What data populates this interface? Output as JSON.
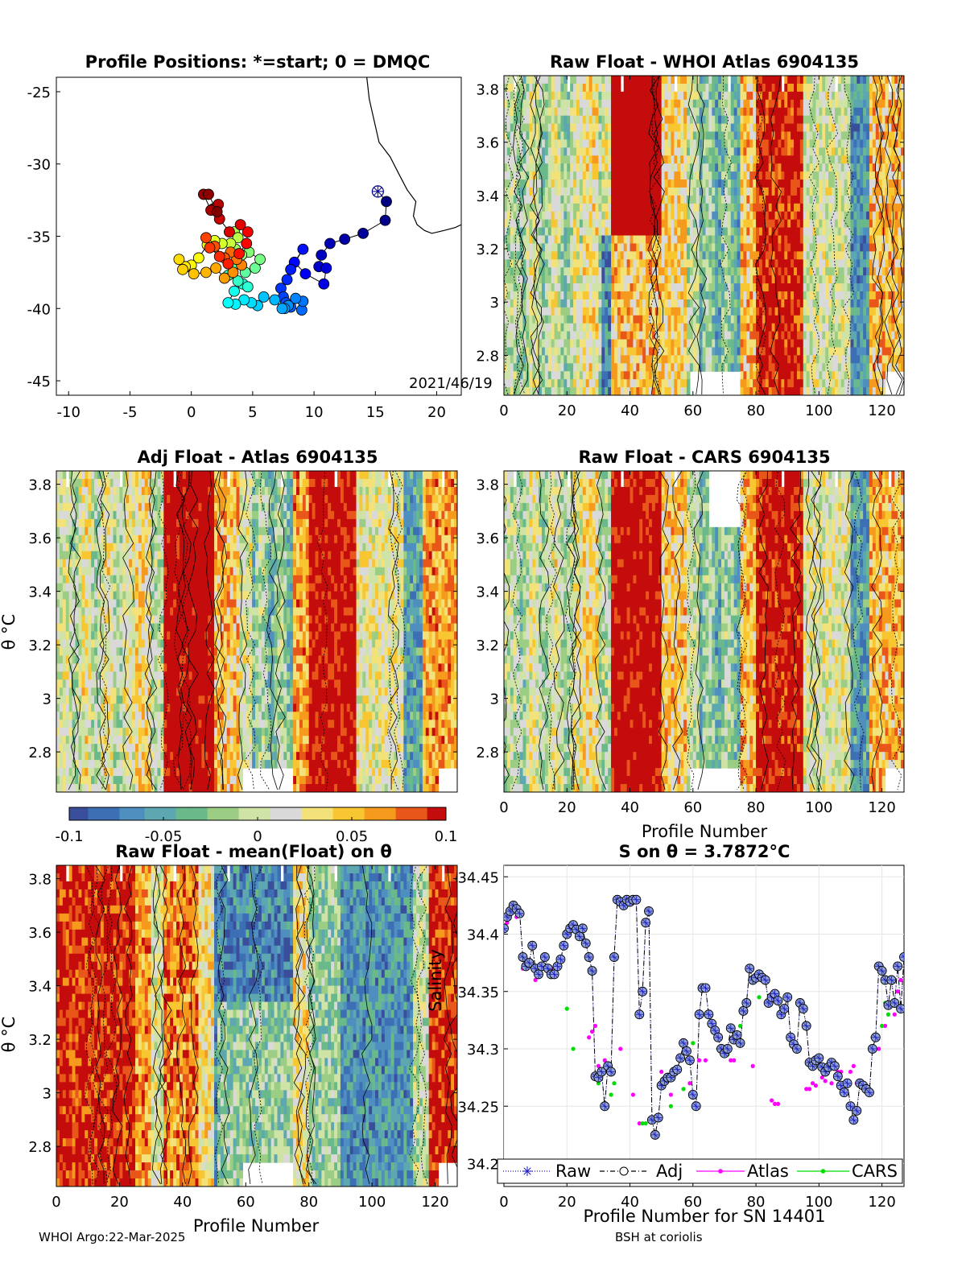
{
  "colors": {
    "scale": [
      "#3a4f9c",
      "#3d6fb5",
      "#4f8fc0",
      "#5da8b0",
      "#69b98a",
      "#9bce84",
      "#cfe3a6",
      "#d9d9d9",
      "#f3e27a",
      "#f7c631",
      "#f59a1d",
      "#e8561a",
      "#c40c0c"
    ],
    "axis": "#000000",
    "grid": "#e6e6e6",
    "raw": "#1f1fbf",
    "adj": "#000000",
    "atlas": "#ff00ff",
    "cars": "#00dd00"
  },
  "footer": {
    "left": "WHOI Argo:22-Mar-2025",
    "right": "BSH at coriolis"
  },
  "panels": {
    "map": {
      "title": "Profile Positions: *=start; 0 = DMQC",
      "date_label": "2021/46/19",
      "xticks": [
        "-10",
        "-5",
        "0",
        "5",
        "10",
        "15",
        "20"
      ],
      "yticks": [
        "-25",
        "-30",
        "-35",
        "-40",
        "-45"
      ]
    },
    "raw_whoi": {
      "title": "Raw Float - WHOI Atlas  6904135",
      "xticks": [
        "0",
        "20",
        "40",
        "60",
        "80",
        "100",
        "120"
      ],
      "yticks": [
        "3.8",
        "3.6",
        "3.4",
        "3.2",
        "3",
        "2.8"
      ]
    },
    "adj_atlas": {
      "title": "Adj Float - Atlas  6904135",
      "ylabel": "θ °C",
      "xticks": [
        "0",
        "20",
        "40",
        "60",
        "80",
        "100",
        "120"
      ],
      "yticks": [
        "3.8",
        "3.6",
        "3.4",
        "3.2",
        "3",
        "2.8"
      ]
    },
    "raw_cars": {
      "title": "Raw Float - CARS  6904135",
      "xlabel": "Profile Number",
      "xticks": [
        "0",
        "20",
        "40",
        "60",
        "80",
        "100",
        "120"
      ],
      "yticks": [
        "3.8",
        "3.6",
        "3.4",
        "3.2",
        "3",
        "2.8"
      ]
    },
    "colorbar": {
      "ticks": [
        "-0.1",
        "-0.05",
        "0",
        "0.05",
        "0.1"
      ]
    },
    "raw_mean": {
      "title": "Raw Float - mean(Float) on θ",
      "ylabel": "θ °C",
      "xlabel": "Profile Number",
      "xticks": [
        "0",
        "20",
        "40",
        "60",
        "80",
        "100",
        "120"
      ],
      "yticks": [
        "3.8",
        "3.6",
        "3.4",
        "3.2",
        "3",
        "2.8"
      ]
    },
    "salinity": {
      "title": "S on θ = 3.7872°C",
      "ylabel": "Salinity",
      "xlabel": "Profile Number for SN 14401",
      "xticks": [
        "0",
        "20",
        "40",
        "60",
        "80",
        "100",
        "120"
      ],
      "yticks": [
        "34.45",
        "34.4",
        "34.35",
        "34.3",
        "34.25",
        "34.2"
      ],
      "legend": [
        "Raw",
        "Adj",
        "Atlas",
        "CARS"
      ]
    }
  },
  "chart_data": [
    {
      "type": "scatter",
      "title": "Profile Positions: *=start; 0 = DMQC",
      "xlim": [
        -11,
        22
      ],
      "ylim": [
        -46,
        -24
      ],
      "start": [
        15.2,
        -31.9
      ],
      "x": [
        15.9,
        15.8,
        14,
        12.5,
        11.3,
        10.6,
        10.4,
        11,
        10.8,
        9.3,
        8.4,
        9.1,
        8.1,
        7.8,
        7.3,
        7.5,
        7.7,
        8.1,
        9,
        9.1,
        8.5,
        7.9,
        7.6,
        7.4,
        6.8,
        5.9,
        5.4,
        4.9,
        4.3,
        3.6,
        3,
        3.5,
        4.2,
        4.6,
        3.8,
        3,
        3.4,
        4.4,
        5.2,
        5.6,
        4.7,
        4.1,
        3.6,
        3.5,
        3.8,
        3.2,
        2.5,
        1.9,
        1.3,
        0.6,
        0,
        -0.5,
        -1,
        -0.7,
        0.2,
        1.2,
        2,
        2.7,
        3.4,
        4.1,
        3.7,
        3.2,
        2.7,
        1.9,
        1.2,
        1.5,
        2.3,
        3,
        3.9,
        4.5,
        4.6,
        4,
        3.1,
        2.3,
        1.8,
        2.2,
        1.6,
        1,
        1.4,
        2.1
      ],
      "y": [
        -32.6,
        -33.9,
        -34.8,
        -35.2,
        -35.5,
        -36.3,
        -37.1,
        -37.2,
        -38.3,
        -37.6,
        -36.8,
        -35.9,
        -37.3,
        -38,
        -38.6,
        -39.2,
        -39.6,
        -39.9,
        -40.1,
        -39.5,
        -39.3,
        -39.8,
        -40,
        -40,
        -39.4,
        -39.2,
        -39.8,
        -39.6,
        -39.4,
        -39.7,
        -39.6,
        -38.8,
        -38.3,
        -38.5,
        -38.1,
        -37.7,
        -37,
        -37.5,
        -37.2,
        -36.6,
        -36.1,
        -36.3,
        -35.9,
        -34.7,
        -35.1,
        -35.5,
        -35.5,
        -35.3,
        -35.6,
        -36.5,
        -37,
        -37.1,
        -36.6,
        -37.3,
        -37.6,
        -37.5,
        -37.2,
        -37.9,
        -37.5,
        -37,
        -36.6,
        -36.1,
        -36.5,
        -35.7,
        -35.1,
        -35.8,
        -36.4,
        -36.9,
        -36.2,
        -35.5,
        -34.7,
        -34.2,
        -34.7,
        -33.8,
        -33.1,
        -32.8,
        -33.2,
        -32.1,
        -32.1,
        -33.3
      ]
    },
    {
      "type": "heatmap",
      "title": "Raw Float - WHOI Atlas  6904135",
      "xlim": [
        0,
        127
      ],
      "ylim": [
        2.65,
        3.85
      ],
      "clim": [
        -0.1,
        0.1
      ]
    },
    {
      "type": "heatmap",
      "title": "Adj Float - Atlas  6904135",
      "ylabel": "θ °C",
      "xlim": [
        0,
        127
      ],
      "ylim": [
        2.65,
        3.85
      ],
      "clim": [
        -0.1,
        0.1
      ]
    },
    {
      "type": "heatmap",
      "title": "Raw Float - CARS  6904135",
      "xlabel": "Profile Number",
      "xlim": [
        0,
        127
      ],
      "ylim": [
        2.65,
        3.85
      ],
      "clim": [
        -0.1,
        0.1
      ]
    },
    {
      "type": "heatmap",
      "title": "Raw Float - mean(Float) on θ",
      "ylabel": "θ °C",
      "xlabel": "Profile Number",
      "xlim": [
        0,
        127
      ],
      "ylim": [
        2.65,
        3.85
      ],
      "clim": [
        -0.1,
        0.1
      ]
    },
    {
      "type": "line",
      "title": "S on θ = 3.7872°C",
      "xlabel": "Profile Number for SN 14401",
      "ylabel": "Salinity",
      "xlim": [
        0,
        127
      ],
      "ylim": [
        34.18,
        34.46
      ],
      "series": [
        {
          "name": "Raw",
          "x": [
            0,
            1,
            2,
            3,
            4,
            5,
            6,
            7,
            8,
            9,
            10,
            11,
            12,
            13,
            14,
            15,
            16,
            17,
            18,
            19,
            20,
            21,
            22,
            23,
            24,
            25,
            26,
            27,
            28,
            29,
            30,
            31,
            32,
            33,
            34,
            35,
            36,
            37,
            38,
            39,
            40,
            41,
            42,
            43,
            44,
            45,
            46,
            47,
            48,
            49,
            50,
            51,
            52,
            53,
            54,
            55,
            56,
            57,
            58,
            59,
            60,
            61,
            62,
            63,
            64,
            65,
            66,
            67,
            68,
            69,
            70,
            71,
            72,
            73,
            74,
            75,
            76,
            77,
            78,
            79,
            80,
            81,
            82,
            83,
            84,
            85,
            86,
            87,
            88,
            89,
            90,
            91,
            92,
            93,
            94,
            95,
            96,
            97,
            98,
            99,
            100,
            101,
            102,
            103,
            104,
            105,
            106,
            107,
            108,
            109,
            110,
            111,
            112,
            113,
            114,
            115,
            116,
            117,
            118,
            119,
            120,
            121,
            122,
            123,
            124,
            125,
            126,
            127
          ],
          "y": [
            34.405,
            34.415,
            34.42,
            34.425,
            34.422,
            34.418,
            34.38,
            34.372,
            34.375,
            34.39,
            34.37,
            34.365,
            34.372,
            34.38,
            34.37,
            34.365,
            34.365,
            34.372,
            34.378,
            34.39,
            34.4,
            34.405,
            34.408,
            34.404,
            34.398,
            34.405,
            34.392,
            34.38,
            34.368,
            34.276,
            34.275,
            34.28,
            34.25,
            34.285,
            34.28,
            34.38,
            34.43,
            34.428,
            34.425,
            34.43,
            34.428,
            34.43,
            34.43,
            34.33,
            34.35,
            34.41,
            34.42,
            34.238,
            34.225,
            34.24,
            34.268,
            34.272,
            34.275,
            34.275,
            34.28,
            34.282,
            34.292,
            34.305,
            34.298,
            34.29,
            34.26,
            34.25,
            34.33,
            34.353,
            34.353,
            34.33,
            34.322,
            34.316,
            34.31,
            34.3,
            34.296,
            34.3,
            34.318,
            34.308,
            34.312,
            34.305,
            34.333,
            34.34,
            34.37,
            34.36,
            34.362,
            34.365,
            34.362,
            34.36,
            34.34,
            34.345,
            34.348,
            34.342,
            34.33,
            34.335,
            34.345,
            34.31,
            34.304,
            34.3,
            34.34,
            34.335,
            34.32,
            34.288,
            34.285,
            34.29,
            34.292,
            34.284,
            34.28,
            34.284,
            34.288,
            34.285,
            34.276,
            34.268,
            34.262,
            34.27,
            34.25,
            34.238,
            34.246,
            34.27,
            34.268,
            34.265,
            34.262,
            34.3,
            34.31,
            34.372,
            34.368,
            34.36,
            34.338,
            34.36,
            34.34,
            34.372,
            34.335,
            34.38
          ]
        },
        {
          "name": "Adj",
          "x": [
            0,
            1,
            2,
            3,
            4,
            5,
            6,
            7,
            8,
            9,
            10,
            11,
            12,
            13,
            14,
            15,
            16,
            17,
            18,
            19,
            20,
            21,
            22,
            23,
            24,
            25,
            26,
            27,
            28,
            29,
            30,
            31,
            32,
            33,
            34,
            35,
            36,
            37,
            38,
            39,
            40,
            41,
            42,
            43,
            44,
            45,
            46,
            47,
            48,
            49,
            50,
            51,
            52,
            53,
            54,
            55,
            56,
            57,
            58,
            59,
            60,
            61,
            62,
            63,
            64,
            65,
            66,
            67,
            68,
            69,
            70,
            71,
            72,
            73,
            74,
            75,
            76,
            77,
            78,
            79,
            80,
            81,
            82,
            83,
            84,
            85,
            86,
            87,
            88,
            89,
            90,
            91,
            92,
            93,
            94,
            95,
            96,
            97,
            98,
            99,
            100,
            101,
            102,
            103,
            104,
            105,
            106,
            107,
            108,
            109,
            110,
            111,
            112,
            113,
            114,
            115,
            116,
            117,
            118,
            119,
            120,
            121,
            122,
            123,
            124,
            125,
            126,
            127
          ],
          "y": [
            34.405,
            34.415,
            34.42,
            34.425,
            34.422,
            34.418,
            34.38,
            34.372,
            34.375,
            34.39,
            34.37,
            34.365,
            34.372,
            34.38,
            34.37,
            34.365,
            34.365,
            34.372,
            34.378,
            34.39,
            34.4,
            34.405,
            34.408,
            34.404,
            34.398,
            34.405,
            34.392,
            34.38,
            34.368,
            34.276,
            34.275,
            34.28,
            34.25,
            34.285,
            34.28,
            34.38,
            34.43,
            34.428,
            34.425,
            34.43,
            34.428,
            34.43,
            34.43,
            34.33,
            34.35,
            34.41,
            34.42,
            34.238,
            34.225,
            34.24,
            34.268,
            34.272,
            34.275,
            34.275,
            34.28,
            34.282,
            34.292,
            34.305,
            34.298,
            34.29,
            34.26,
            34.25,
            34.33,
            34.353,
            34.353,
            34.33,
            34.322,
            34.316,
            34.31,
            34.3,
            34.296,
            34.3,
            34.318,
            34.308,
            34.312,
            34.305,
            34.333,
            34.34,
            34.37,
            34.36,
            34.362,
            34.365,
            34.362,
            34.36,
            34.34,
            34.345,
            34.348,
            34.342,
            34.33,
            34.335,
            34.345,
            34.31,
            34.304,
            34.3,
            34.34,
            34.335,
            34.32,
            34.288,
            34.285,
            34.29,
            34.292,
            34.284,
            34.28,
            34.284,
            34.288,
            34.285,
            34.276,
            34.268,
            34.262,
            34.27,
            34.25,
            34.238,
            34.246,
            34.27,
            34.268,
            34.265,
            34.262,
            34.3,
            34.31,
            34.372,
            34.368,
            34.36,
            34.338,
            34.36,
            34.34,
            34.372,
            34.335,
            34.38
          ]
        },
        {
          "name": "Atlas",
          "x": [
            1,
            2,
            3,
            4,
            6,
            7,
            10,
            15,
            18,
            27,
            28,
            29,
            30,
            32,
            33,
            37,
            41,
            43,
            50,
            53,
            59,
            62,
            64,
            69,
            72,
            73,
            79,
            85,
            86,
            87,
            96,
            97,
            98,
            99,
            101,
            102,
            104,
            105,
            106,
            107,
            108,
            109,
            110,
            111,
            112,
            119,
            121,
            123,
            124,
            125,
            126
          ],
          "y": [
            34.41,
            34.42,
            34.42,
            34.415,
            34.37,
            34.375,
            34.36,
            34.37,
            34.38,
            34.31,
            34.315,
            34.32,
            34.285,
            34.29,
            34.28,
            34.3,
            34.26,
            34.235,
            34.28,
            34.26,
            34.27,
            34.29,
            34.29,
            34.3,
            34.29,
            34.29,
            34.285,
            34.255,
            34.252,
            34.252,
            34.265,
            34.265,
            34.27,
            34.268,
            34.275,
            34.272,
            34.27,
            34.285,
            34.28,
            34.28,
            34.27,
            34.27,
            34.28,
            34.285,
            34.27,
            34.3,
            34.32,
            34.34,
            34.33,
            34.35,
            34.36
          ]
        },
        {
          "name": "CARS",
          "x": [
            20,
            22,
            29,
            30,
            34,
            35,
            44,
            45,
            53,
            57,
            60,
            65,
            68,
            71,
            75,
            81,
            117,
            120,
            121,
            122
          ],
          "y": [
            34.335,
            34.3,
            34.275,
            34.27,
            34.26,
            34.27,
            34.235,
            34.235,
            34.25,
            34.265,
            34.305,
            34.33,
            34.3,
            34.295,
            34.32,
            34.345,
            34.31,
            34.32,
            34.34,
            34.33
          ]
        }
      ],
      "legend": "bottom-outside"
    }
  ]
}
